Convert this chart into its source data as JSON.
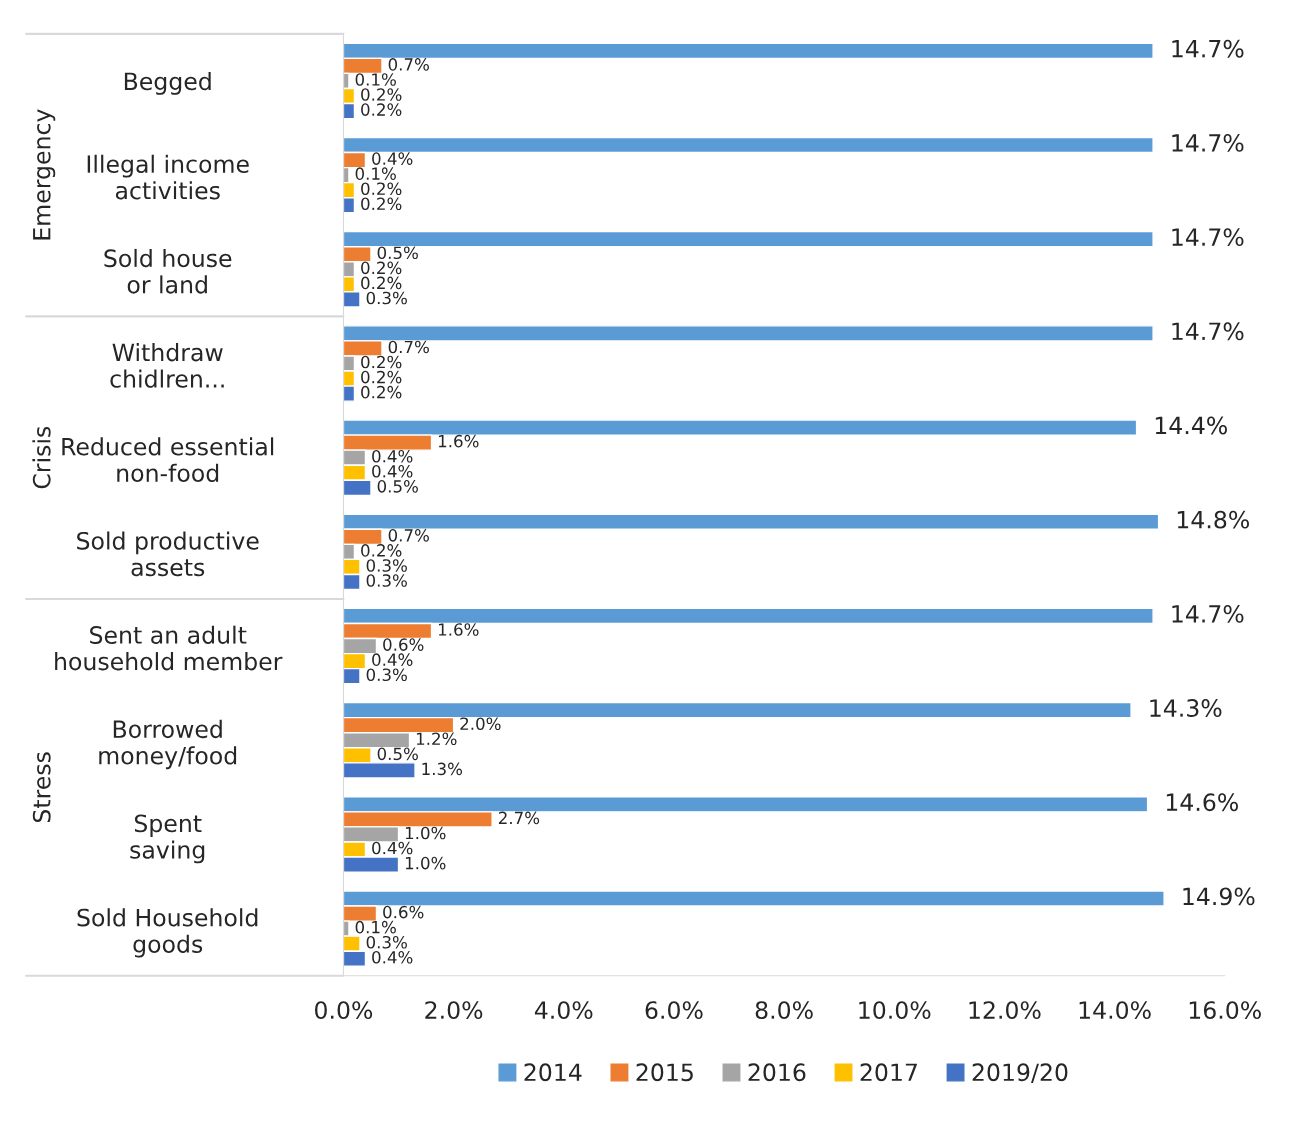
{
  "chart_data": {
    "type": "bar",
    "orientation": "horizontal",
    "categories": [
      "Begged",
      "Illegal income\nactivities",
      "Sold house\nor land",
      "Withdraw\nchidlren...",
      "Reduced essential\nnon-food",
      "Sold productive\nassets",
      "Sent an adult\nhousehold member",
      "Borrowed\nmoney/food",
      "Spent\nsaving",
      "Sold Household\ngoods"
    ],
    "series": [
      {
        "name": "2014",
        "color": "#5b9bd5",
        "values": [
          14.7,
          14.7,
          14.7,
          14.7,
          14.4,
          14.8,
          14.7,
          14.3,
          14.6,
          14.9
        ],
        "value_labels": [
          "14.7%",
          "14.7%",
          "14.7%",
          "14.7%",
          "14.4%",
          "14.8%",
          "14.7%",
          "14.3%",
          "14.6%",
          "14.9%"
        ]
      },
      {
        "name": "2015",
        "color": "#ed7d31",
        "values": [
          0.7,
          0.4,
          0.5,
          0.7,
          1.6,
          0.7,
          1.6,
          2.0,
          2.7,
          0.6
        ],
        "value_labels": [
          "0.7%",
          "0.4%",
          "0.5%",
          "0.7%",
          "1.6%",
          "0.7%",
          "1.6%",
          "2.0%",
          "2.7%",
          "0.6%"
        ]
      },
      {
        "name": "2016",
        "color": "#a5a5a5",
        "values": [
          0.1,
          0.1,
          0.2,
          0.2,
          0.4,
          0.2,
          0.6,
          1.2,
          1.0,
          0.1
        ],
        "value_labels": [
          "0.1%",
          "0.1%",
          "0.2%",
          "0.2%",
          "0.4%",
          "0.2%",
          "0.6%",
          "1.2%",
          "1.0%",
          "0.1%"
        ]
      },
      {
        "name": "2017",
        "color": "#ffc000",
        "values": [
          0.2,
          0.2,
          0.2,
          0.2,
          0.4,
          0.3,
          0.4,
          0.5,
          0.4,
          0.3
        ],
        "value_labels": [
          "0.2%",
          "0.2%",
          "0.2%",
          "0.2%",
          "0.4%",
          "0.3%",
          "0.4%",
          "0.5%",
          "0.4%",
          "0.3%"
        ]
      },
      {
        "name": "2019/20",
        "color": "#4472c4",
        "values": [
          0.2,
          0.2,
          0.3,
          0.2,
          0.5,
          0.3,
          0.3,
          1.3,
          1.0,
          0.4
        ],
        "value_labels": [
          "0.2%",
          "0.2%",
          "0.3%",
          "0.2%",
          "0.5%",
          "0.3%",
          "0.3%",
          "1.3%",
          "1.0%",
          "0.4%"
        ]
      }
    ],
    "annotations": [
      "Emergency",
      "Crisis",
      "Stress"
    ],
    "xlim": [
      0,
      16
    ],
    "xticks": [
      {
        "value": 0,
        "label": "0.0%"
      },
      {
        "value": 2,
        "label": "2.0%"
      },
      {
        "value": 4,
        "label": "4.0%"
      },
      {
        "value": 6,
        "label": "6.0%"
      },
      {
        "value": 8,
        "label": "8.0%"
      },
      {
        "value": 10,
        "label": "10.0%"
      },
      {
        "value": 12,
        "label": "12.0%"
      },
      {
        "value": 14,
        "label": "14.0%"
      },
      {
        "value": 16,
        "label": "16.0%"
      }
    ],
    "grid": false,
    "legend": "bottom"
  }
}
